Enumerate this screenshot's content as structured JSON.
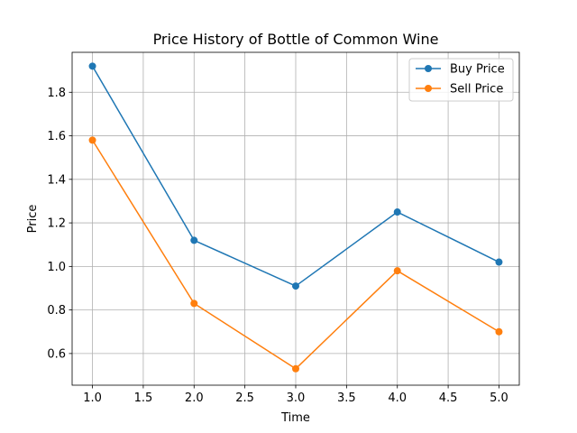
{
  "chart_data": {
    "type": "line",
    "title": "Price History of Bottle of Common Wine",
    "xlabel": "Time",
    "ylabel": "Price",
    "x": [
      1.0,
      2.0,
      3.0,
      4.0,
      5.0
    ],
    "xlim": [
      0.8,
      5.2
    ],
    "ylim": [
      0.4545,
      1.9835
    ],
    "xticks": [
      1.0,
      1.5,
      2.0,
      2.5,
      3.0,
      3.5,
      4.0,
      4.5,
      5.0
    ],
    "xtick_labels": [
      "1.0",
      "1.5",
      "2.0",
      "2.5",
      "3.0",
      "3.5",
      "4.0",
      "4.5",
      "5.0"
    ],
    "yticks": [
      0.6,
      0.8,
      1.0,
      1.2,
      1.4,
      1.6,
      1.8
    ],
    "ytick_labels": [
      "0.6",
      "0.8",
      "1.0",
      "1.2",
      "1.4",
      "1.6",
      "1.8"
    ],
    "grid": true,
    "legend_position": "top-right",
    "series": [
      {
        "name": "Buy Price",
        "color": "#1f77b4",
        "values": [
          1.92,
          1.12,
          0.91,
          1.25,
          1.02
        ]
      },
      {
        "name": "Sell Price",
        "color": "#ff7f0e",
        "values": [
          1.58,
          0.83,
          0.53,
          0.98,
          0.7
        ]
      }
    ]
  }
}
